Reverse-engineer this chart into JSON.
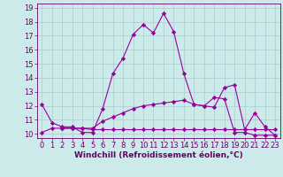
{
  "line1_x": [
    0,
    1,
    2,
    3,
    4,
    5,
    6,
    7,
    8,
    9,
    10,
    11,
    12,
    13,
    14,
    15,
    16,
    17,
    18,
    19,
    20,
    21,
    22,
    23
  ],
  "line1_y": [
    12.1,
    10.8,
    10.5,
    10.5,
    10.1,
    10.1,
    11.8,
    14.3,
    15.4,
    17.1,
    17.8,
    17.2,
    18.6,
    17.3,
    14.3,
    12.1,
    12.0,
    11.9,
    13.3,
    13.5,
    10.3,
    11.5,
    10.5,
    9.9
  ],
  "line2_x": [
    0,
    1,
    2,
    3,
    4,
    5,
    6,
    7,
    8,
    9,
    10,
    11,
    12,
    13,
    14,
    15,
    16,
    17,
    18,
    19,
    20,
    21,
    22,
    23
  ],
  "line2_y": [
    10.1,
    10.4,
    10.4,
    10.4,
    10.4,
    10.3,
    10.3,
    10.3,
    10.3,
    10.3,
    10.3,
    10.3,
    10.3,
    10.3,
    10.3,
    10.3,
    10.3,
    10.3,
    10.3,
    10.3,
    10.3,
    10.3,
    10.3,
    10.3
  ],
  "line3_x": [
    2,
    3,
    4,
    5,
    6,
    7,
    8,
    9,
    10,
    11,
    12,
    13,
    14,
    15,
    16,
    17,
    18,
    19,
    20,
    21,
    22,
    23
  ],
  "line3_y": [
    10.4,
    10.4,
    10.4,
    10.4,
    10.9,
    11.2,
    11.5,
    11.8,
    12.0,
    12.1,
    12.2,
    12.3,
    12.4,
    12.1,
    12.0,
    12.6,
    12.5,
    10.1,
    10.1,
    9.9,
    9.9,
    9.9
  ],
  "color": "#990099",
  "bg_color": "#cceaea",
  "grid_color": "#aacccc",
  "xlabel": "Windchill (Refroidissement éolien,°C)",
  "xlim": [
    -0.5,
    23.5
  ],
  "ylim": [
    9.7,
    19.3
  ],
  "yticks": [
    10,
    11,
    12,
    13,
    14,
    15,
    16,
    17,
    18,
    19
  ],
  "xticks": [
    0,
    1,
    2,
    3,
    4,
    5,
    6,
    7,
    8,
    9,
    10,
    11,
    12,
    13,
    14,
    15,
    16,
    17,
    18,
    19,
    20,
    21,
    22,
    23
  ],
  "marker": "D",
  "markersize": 2.2,
  "linewidth": 0.8,
  "font_color": "#660066",
  "xlabel_fontsize": 6.5,
  "tick_fontsize": 6.0
}
